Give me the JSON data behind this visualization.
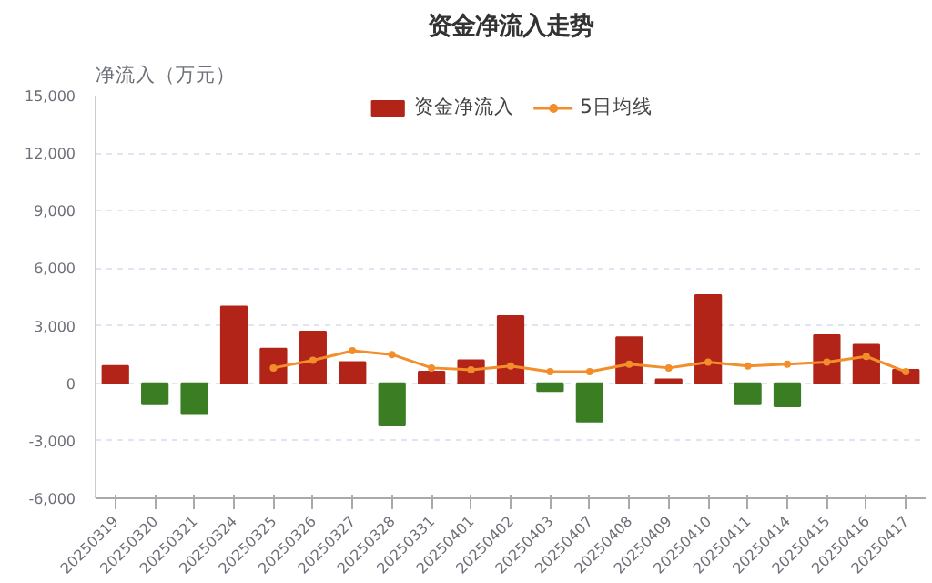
{
  "chart_data": {
    "type": "bar",
    "title": "资金净流入走势",
    "ylabel": "净流入（万元）",
    "categories": [
      "20250319",
      "20250320",
      "20250321",
      "20250324",
      "20250325",
      "20250326",
      "20250327",
      "20250328",
      "20250331",
      "20250401",
      "20250402",
      "20250403",
      "20250407",
      "20250408",
      "20250409",
      "20250410",
      "20250411",
      "20250414",
      "20250415",
      "20250416",
      "20250417"
    ],
    "series": [
      {
        "name": "资金净流入",
        "colors": [
          "#b22418",
          "#3a7d22",
          "#3a7d22",
          "#b22418",
          "#b22418",
          "#b22418",
          "#b22418",
          "#3a7d22",
          "#b22418",
          "#b22418",
          "#b22418",
          "#3a7d22",
          "#3a7d22",
          "#b22418",
          "#b22418",
          "#b22418",
          "#3a7d22",
          "#3a7d22",
          "#b22418",
          "#b22418",
          "#b22418"
        ],
        "values": [
          900,
          -1100,
          -1600,
          4000,
          1800,
          2700,
          1100,
          -2200,
          600,
          1200,
          3500,
          -400,
          -2000,
          2400,
          200,
          4600,
          -1100,
          -1200,
          2500,
          2000,
          700
        ]
      },
      {
        "name": "5日均线",
        "type": "line",
        "color": "#f28e2b",
        "values": [
          null,
          null,
          null,
          null,
          800,
          1200,
          1700,
          1500,
          800,
          700,
          900,
          600,
          600,
          1000,
          800,
          1100,
          900,
          1000,
          1100,
          1400,
          600
        ]
      }
    ],
    "ylim": [
      -6000,
      15000
    ],
    "yticks": [
      {
        "value": -6000,
        "label": "-6,000"
      },
      {
        "value": -3000,
        "label": "-3,000"
      },
      0,
      {
        "value": 3000,
        "label": "3,000"
      },
      {
        "value": 6000,
        "label": "6,000"
      },
      {
        "value": 9000,
        "label": "9,000"
      },
      {
        "value": 12000,
        "label": "12,000"
      },
      {
        "value": 15000,
        "label": "15,000"
      }
    ],
    "grid": "y",
    "legend": "top",
    "marker": "circle",
    "line_style": "solid"
  }
}
